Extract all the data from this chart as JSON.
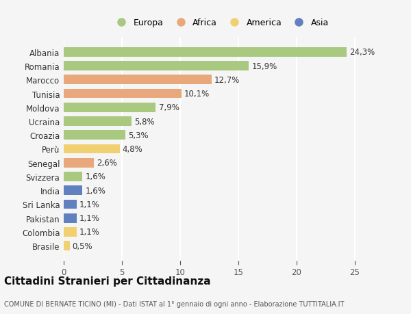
{
  "countries": [
    "Albania",
    "Romania",
    "Marocco",
    "Tunisia",
    "Moldova",
    "Ucraina",
    "Croazia",
    "Perù",
    "Senegal",
    "Svizzera",
    "India",
    "Sri Lanka",
    "Pakistan",
    "Colombia",
    "Brasile"
  ],
  "values": [
    24.3,
    15.9,
    12.7,
    10.1,
    7.9,
    5.8,
    5.3,
    4.8,
    2.6,
    1.6,
    1.6,
    1.1,
    1.1,
    1.1,
    0.5
  ],
  "continents": [
    "Europa",
    "Europa",
    "Africa",
    "Africa",
    "Europa",
    "Europa",
    "Europa",
    "America",
    "Africa",
    "Europa",
    "Asia",
    "Asia",
    "Asia",
    "America",
    "America"
  ],
  "continent_colors": {
    "Europa": "#a8c97f",
    "Africa": "#e8a87c",
    "America": "#f0d070",
    "Asia": "#6080c0"
  },
  "legend_order": [
    "Europa",
    "Africa",
    "America",
    "Asia"
  ],
  "title": "Cittadini Stranieri per Cittadinanza",
  "subtitle": "COMUNE DI BERNATE TICINO (MI) - Dati ISTAT al 1° gennaio di ogni anno - Elaborazione TUTTITALIA.IT",
  "xlim": [
    0,
    27
  ],
  "xticks": [
    0,
    5,
    10,
    15,
    20,
    25
  ],
  "background_color": "#f5f5f5",
  "grid_color": "#ffffff",
  "bar_height": 0.68,
  "label_fontsize": 8.5,
  "tick_fontsize": 8.5,
  "title_fontsize": 11,
  "subtitle_fontsize": 7,
  "legend_fontsize": 9
}
